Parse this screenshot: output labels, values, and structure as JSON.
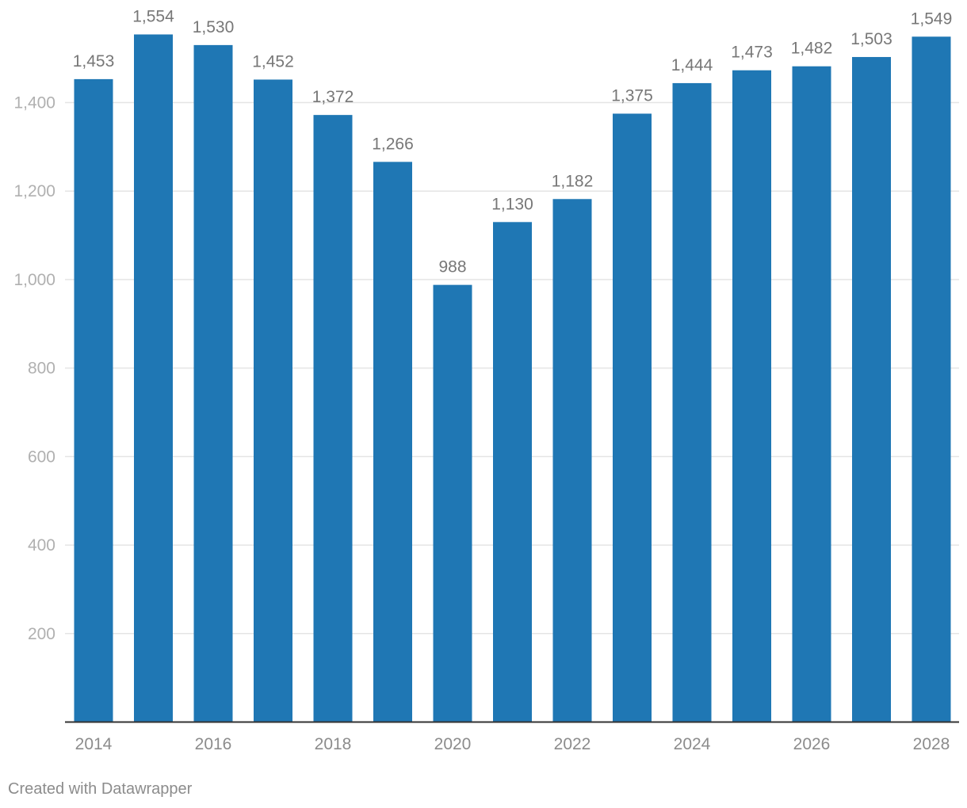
{
  "chart_data": {
    "type": "bar",
    "categories": [
      "2014",
      "2015",
      "2016",
      "2017",
      "2018",
      "2019",
      "2020",
      "2021",
      "2022",
      "2023",
      "2024",
      "2025",
      "2026",
      "2027",
      "2028"
    ],
    "values": [
      1453,
      1554,
      1530,
      1452,
      1372,
      1266,
      988,
      1130,
      1182,
      1375,
      1444,
      1473,
      1482,
      1503,
      1549
    ],
    "data_labels": [
      "1,453",
      "1,554",
      "1,530",
      "1,452",
      "1,372",
      "1,266",
      "988",
      "1,130",
      "1,182",
      "1,375",
      "1,444",
      "1,473",
      "1,482",
      "1,503",
      "1,549"
    ],
    "x_tick_labels": [
      "2014",
      "",
      "2016",
      "",
      "2018",
      "",
      "2020",
      "",
      "2022",
      "",
      "2024",
      "",
      "2026",
      "",
      "2028"
    ],
    "y_ticks": [
      200,
      400,
      600,
      800,
      1000,
      1200,
      1400
    ],
    "y_tick_labels": [
      "200",
      "400",
      "600",
      "800",
      "1,000",
      "1,200",
      "1,400"
    ],
    "ylim": [
      0,
      1400
    ],
    "grid": true,
    "title": "",
    "xlabel": "",
    "ylabel": "",
    "colors": {
      "bar": "#1f77b4",
      "grid": "#e4e4e4",
      "axis": "#333333",
      "tick_text": "#b0b0b0",
      "x_tick_text": "#8c8c8c",
      "label_text": "#777777"
    }
  },
  "footer": {
    "credit": "Created with Datawrapper"
  }
}
